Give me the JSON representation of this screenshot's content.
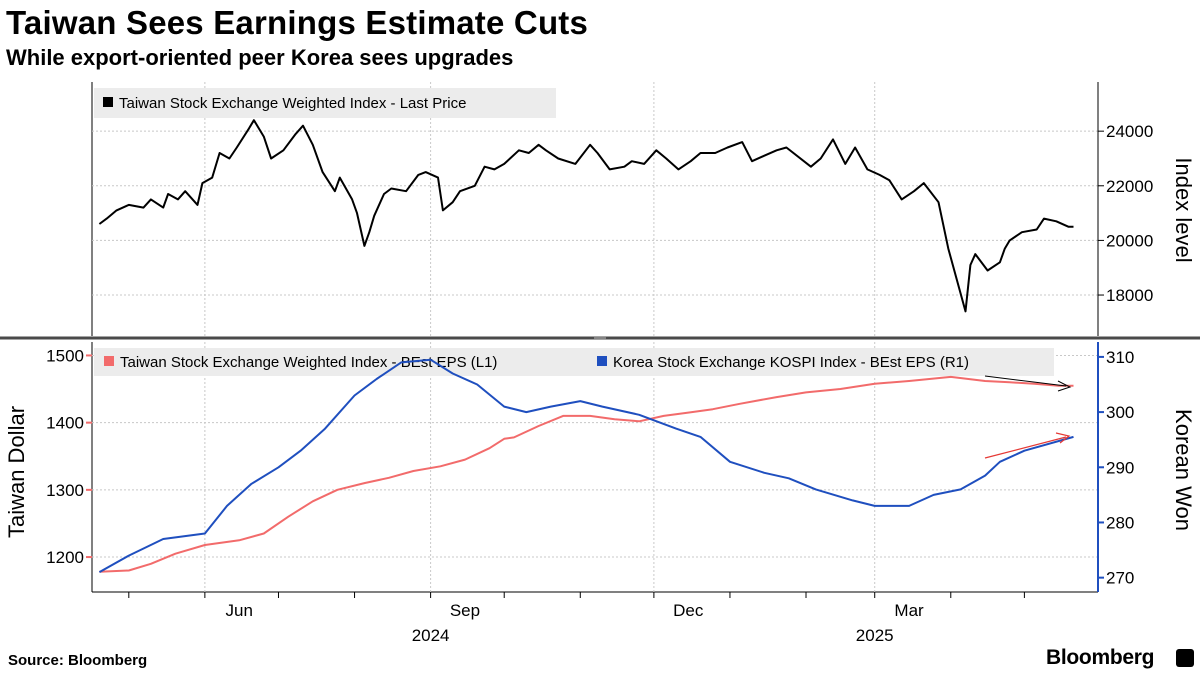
{
  "header": {
    "title": "Taiwan Sees Earnings Estimate Cuts",
    "subtitle": "While export-oriented peer Korea sees upgrades"
  },
  "footer": {
    "source": "Source: Bloomberg",
    "brand": "Bloomberg"
  },
  "colors": {
    "taiwan_price": "#000000",
    "taiwan_eps": "#f26b6b",
    "kospi_eps": "#1f4fbf",
    "grid": "#c8c8c8"
  },
  "chart_data": [
    {
      "type": "line",
      "panel": "top",
      "ylabel": "Index level",
      "ylim": [
        16500,
        25800
      ],
      "yticks": [
        "18000",
        "20000",
        "22000",
        "24000"
      ],
      "ytick_values": [
        18000,
        20000,
        22000,
        24000
      ],
      "x_ticks": [
        "Jun",
        "Sep",
        "Dec",
        "Mar"
      ],
      "x_years": [
        "2024",
        "2025"
      ],
      "legend": "Taiwan Stock Exchange Weighted Index - Last Price",
      "series": [
        {
          "name": "Taiwan Stock Exchange Weighted Index - Last Price",
          "x": [
            "2024-04-19",
            "2024-04-22",
            "2024-04-26",
            "2024-05-01",
            "2024-05-07",
            "2024-05-10",
            "2024-05-15",
            "2024-05-17",
            "2024-05-21",
            "2024-05-24",
            "2024-05-29",
            "2024-05-31",
            "2024-06-04",
            "2024-06-07",
            "2024-06-11",
            "2024-06-14",
            "2024-06-19",
            "2024-06-21",
            "2024-06-25",
            "2024-06-28",
            "2024-07-03",
            "2024-07-08",
            "2024-07-11",
            "2024-07-15",
            "2024-07-19",
            "2024-07-24",
            "2024-07-26",
            "2024-07-31",
            "2024-08-02",
            "2024-08-05",
            "2024-08-07",
            "2024-08-09",
            "2024-08-13",
            "2024-08-16",
            "2024-08-22",
            "2024-08-27",
            "2024-08-30",
            "2024-09-04",
            "2024-09-06",
            "2024-09-10",
            "2024-09-13",
            "2024-09-19",
            "2024-09-23",
            "2024-09-27",
            "2024-10-01",
            "2024-10-07",
            "2024-10-11",
            "2024-10-15",
            "2024-10-18",
            "2024-10-23",
            "2024-10-30",
            "2024-11-05",
            "2024-11-08",
            "2024-11-13",
            "2024-11-19",
            "2024-11-22",
            "2024-11-27",
            "2024-12-02",
            "2024-12-06",
            "2024-12-11",
            "2024-12-16",
            "2024-12-20",
            "2024-12-26",
            "2024-12-31",
            "2025-01-06",
            "2025-01-10",
            "2025-01-15",
            "2025-01-20",
            "2025-01-24",
            "2025-02-03",
            "2025-02-07",
            "2025-02-12",
            "2025-02-17",
            "2025-02-21",
            "2025-02-26",
            "2025-03-03",
            "2025-03-07",
            "2025-03-12",
            "2025-03-17",
            "2025-03-21",
            "2025-03-27",
            "2025-03-31",
            "2025-04-07",
            "2025-04-09",
            "2025-04-11",
            "2025-04-16",
            "2025-04-21",
            "2025-04-23",
            "2025-04-25",
            "2025-04-30",
            "2025-05-06",
            "2025-05-09",
            "2025-05-14",
            "2025-05-19",
            "2025-05-21"
          ],
          "values": [
            20600,
            20800,
            21100,
            21300,
            21200,
            21500,
            21200,
            21700,
            21500,
            21800,
            21300,
            22100,
            22300,
            23200,
            23000,
            23400,
            24100,
            24400,
            23800,
            23000,
            23300,
            23900,
            24200,
            23500,
            22500,
            21800,
            22300,
            21500,
            21000,
            19800,
            20300,
            20900,
            21700,
            21900,
            21800,
            22400,
            22500,
            22300,
            21100,
            21400,
            21800,
            22000,
            22700,
            22600,
            22800,
            23300,
            23200,
            23500,
            23300,
            23000,
            22800,
            23500,
            23200,
            22600,
            22700,
            22900,
            22800,
            23300,
            23000,
            22600,
            22900,
            23200,
            23200,
            23400,
            23600,
            22900,
            23100,
            23300,
            23400,
            22700,
            23000,
            23700,
            22800,
            23400,
            22600,
            22400,
            22200,
            21500,
            21800,
            22100,
            21400,
            19700,
            17400,
            19100,
            19500,
            18900,
            19200,
            19700,
            20000,
            20300,
            20400,
            20800,
            20700,
            20500,
            20500
          ]
        }
      ]
    },
    {
      "type": "line",
      "panel": "bottom",
      "ylabel": "Taiwan Dollar",
      "y2label": "Korean Won",
      "ylim": [
        1148,
        1520
      ],
      "y2lim": [
        267.4,
        312.7
      ],
      "yticks": [
        "1200",
        "1300",
        "1400",
        "1500"
      ],
      "ytick_values": [
        1200,
        1300,
        1400,
        1500
      ],
      "y2ticks": [
        "270",
        "280",
        "290",
        "300",
        "310"
      ],
      "y2tick_values": [
        270,
        280,
        290,
        300,
        310
      ],
      "x_ticks": [
        "Jun",
        "Sep",
        "Dec",
        "Mar"
      ],
      "x_years": [
        "2024",
        "2025"
      ],
      "legend": [
        "Taiwan Stock Exchange Weighted Index - BEst EPS (L1)",
        "Korea Stock Exchange KOSPI Index - BEst EPS (R1)"
      ],
      "series": [
        {
          "name": "Taiwan Stock Exchange Weighted Index - BEst EPS (L1)",
          "axis": "left",
          "x": [
            "2024-04-19",
            "2024-05-01",
            "2024-05-10",
            "2024-05-20",
            "2024-06-01",
            "2024-06-15",
            "2024-06-25",
            "2024-07-05",
            "2024-07-15",
            "2024-07-25",
            "2024-08-05",
            "2024-08-15",
            "2024-08-25",
            "2024-09-05",
            "2024-09-15",
            "2024-09-25",
            "2024-10-01",
            "2024-10-05",
            "2024-10-15",
            "2024-10-25",
            "2024-11-05",
            "2024-11-15",
            "2024-11-25",
            "2024-12-05",
            "2024-12-15",
            "2024-12-25",
            "2025-01-05",
            "2025-01-20",
            "2025-02-01",
            "2025-02-15",
            "2025-03-01",
            "2025-03-15",
            "2025-04-01",
            "2025-04-15",
            "2025-04-25",
            "2025-05-05",
            "2025-05-15",
            "2025-05-21"
          ],
          "values": [
            1178,
            1180,
            1190,
            1205,
            1218,
            1225,
            1235,
            1260,
            1283,
            1300,
            1310,
            1318,
            1328,
            1335,
            1345,
            1362,
            1376,
            1378,
            1395,
            1410,
            1410,
            1405,
            1402,
            1410,
            1415,
            1420,
            1428,
            1438,
            1445,
            1450,
            1458,
            1462,
            1468,
            1462,
            1460,
            1458,
            1455,
            1455
          ]
        },
        {
          "name": "Korea Stock Exchange KOSPI Index - BEst EPS (R1)",
          "axis": "right",
          "x": [
            "2024-04-19",
            "2024-05-01",
            "2024-05-15",
            "2024-06-01",
            "2024-06-10",
            "2024-06-20",
            "2024-07-01",
            "2024-07-10",
            "2024-07-20",
            "2024-08-01",
            "2024-08-10",
            "2024-08-20",
            "2024-09-01",
            "2024-09-10",
            "2024-09-20",
            "2024-10-01",
            "2024-10-10",
            "2024-10-20",
            "2024-11-01",
            "2024-11-10",
            "2024-11-25",
            "2024-12-10",
            "2024-12-20",
            "2025-01-01",
            "2025-01-15",
            "2025-01-25",
            "2025-02-05",
            "2025-02-20",
            "2025-03-01",
            "2025-03-15",
            "2025-03-25",
            "2025-04-05",
            "2025-04-15",
            "2025-04-21",
            "2025-05-01",
            "2025-05-21"
          ],
          "values": [
            271,
            274,
            277,
            278,
            283,
            287,
            290,
            293,
            297,
            303,
            306,
            309,
            309.5,
            307,
            305,
            301,
            300,
            301,
            302,
            301,
            299.5,
            297,
            295.5,
            291,
            289,
            288,
            286,
            284,
            283,
            283,
            285,
            286,
            288.5,
            291,
            293,
            295.5
          ]
        }
      ],
      "annotations": [
        {
          "type": "arrow",
          "color": "#000000",
          "target": "Taiwan EPS trend (down)"
        },
        {
          "type": "arrow",
          "color": "#e53935",
          "target": "KOSPI EPS trend (up)"
        }
      ]
    }
  ]
}
